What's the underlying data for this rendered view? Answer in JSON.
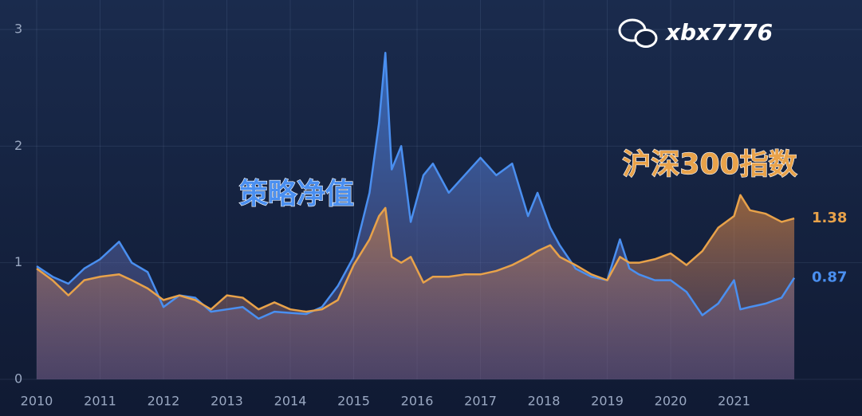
{
  "chart_data": {
    "type": "area-line",
    "watermark": "xbx7776",
    "x": [
      2010,
      2010.25,
      2010.5,
      2010.75,
      2011,
      2011.3,
      2011.5,
      2011.75,
      2012,
      2012.25,
      2012.5,
      2012.75,
      2013,
      2013.25,
      2013.5,
      2013.75,
      2014,
      2014.25,
      2014.5,
      2014.75,
      2015,
      2015.25,
      2015.4,
      2015.5,
      2015.6,
      2015.75,
      2015.9,
      2016.1,
      2016.25,
      2016.5,
      2016.75,
      2017,
      2017.25,
      2017.5,
      2017.75,
      2017.9,
      2018.1,
      2018.25,
      2018.5,
      2018.75,
      2019,
      2019.2,
      2019.35,
      2019.5,
      2019.75,
      2020,
      2020.25,
      2020.5,
      2020.75,
      2021,
      2021.1,
      2021.25,
      2021.5,
      2021.75,
      2021.95
    ],
    "series": [
      {
        "name": "策略净值",
        "color": "#4a8ff0",
        "values": [
          0.97,
          0.88,
          0.82,
          0.95,
          1.03,
          1.18,
          1.0,
          0.92,
          0.62,
          0.72,
          0.7,
          0.58,
          0.6,
          0.62,
          0.52,
          0.58,
          0.57,
          0.56,
          0.62,
          0.8,
          1.05,
          1.6,
          2.2,
          2.8,
          1.8,
          2.0,
          1.35,
          1.75,
          1.85,
          1.6,
          1.75,
          1.9,
          1.75,
          1.85,
          1.4,
          1.6,
          1.3,
          1.15,
          0.95,
          0.88,
          0.85,
          1.2,
          0.95,
          0.9,
          0.85,
          0.85,
          0.75,
          0.55,
          0.65,
          0.85,
          0.6,
          0.62,
          0.65,
          0.7,
          0.87
        ]
      },
      {
        "name": "沪深300指数",
        "color": "#e8a24a",
        "values": [
          0.95,
          0.85,
          0.72,
          0.85,
          0.88,
          0.9,
          0.85,
          0.78,
          0.68,
          0.72,
          0.68,
          0.6,
          0.72,
          0.7,
          0.6,
          0.66,
          0.6,
          0.58,
          0.6,
          0.68,
          0.98,
          1.2,
          1.4,
          1.47,
          1.05,
          1.0,
          1.05,
          0.83,
          0.88,
          0.88,
          0.9,
          0.9,
          0.93,
          0.98,
          1.05,
          1.1,
          1.15,
          1.05,
          0.98,
          0.9,
          0.85,
          1.05,
          1.0,
          1.0,
          1.03,
          1.08,
          0.98,
          1.1,
          1.3,
          1.4,
          1.58,
          1.45,
          1.42,
          1.35,
          1.38
        ]
      }
    ],
    "xlim": [
      2010,
      2022.1
    ],
    "xticks": [
      2010,
      2011,
      2012,
      2013,
      2014,
      2015,
      2016,
      2017,
      2018,
      2019,
      2020,
      2021
    ],
    "ylim": [
      0,
      3
    ],
    "yticks": [
      0,
      1,
      2,
      3
    ],
    "grid": true
  }
}
